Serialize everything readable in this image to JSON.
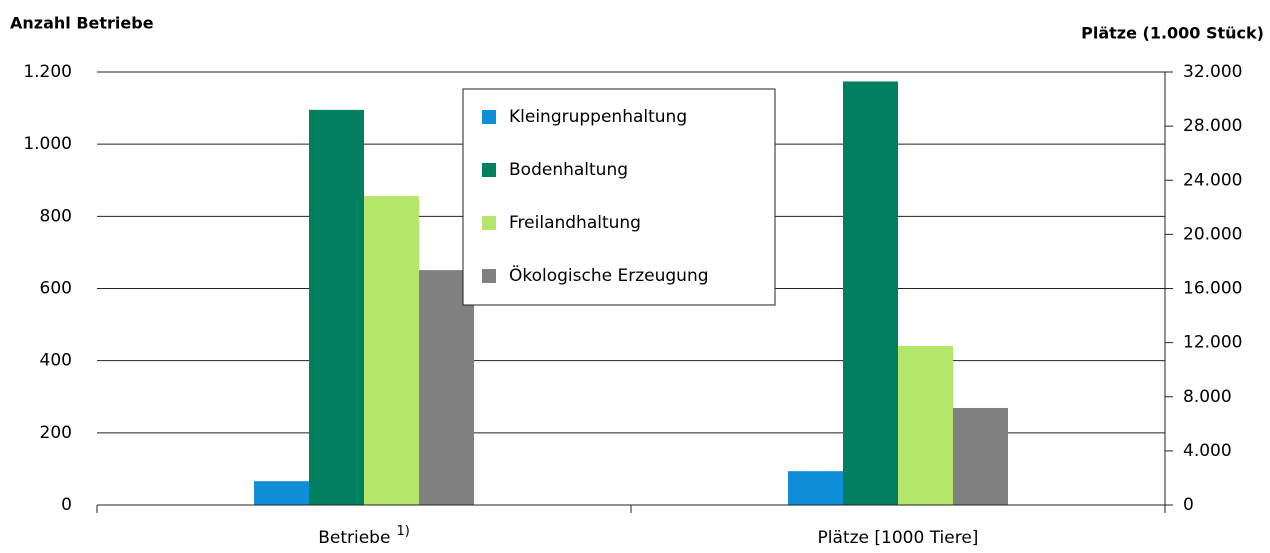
{
  "chart_data": {
    "type": "bar",
    "y_axis_title": "Anzahl Betriebe",
    "y2_axis_title": "Plätze (1.000 Stück)",
    "categories": [
      "Betriebe",
      "Plätze [1000 Tiere]"
    ],
    "category_footnotes": [
      "1)",
      null
    ],
    "category_axes": [
      "y",
      "y2"
    ],
    "series": [
      {
        "name": "Kleingruppenhaltung",
        "color": "#0f8fd8",
        "values": [
          66,
          2500
        ]
      },
      {
        "name": "Bodenhaltung",
        "color": "#007f5f",
        "values": [
          1095,
          31300
        ]
      },
      {
        "name": "Freilandhaltung",
        "color": "#b3e66a",
        "values": [
          856,
          11750
        ]
      },
      {
        "name": "Ökologische Erzeugung",
        "color": "#808080",
        "values": [
          651,
          7170
        ]
      }
    ],
    "ylim": [
      0,
      1200
    ],
    "yticks": [
      0,
      200,
      400,
      600,
      800,
      {
        "value": 1000,
        "label": "1.000"
      },
      {
        "value": 1200,
        "label": "1.200"
      }
    ],
    "y2lim": [
      0,
      32000
    ],
    "y2ticks": [
      0,
      {
        "value": 4000,
        "label": "4.000"
      },
      {
        "value": 8000,
        "label": "8.000"
      },
      {
        "value": 12000,
        "label": "12.000"
      },
      {
        "value": 16000,
        "label": "16.000"
      },
      {
        "value": 20000,
        "label": "20.000"
      },
      {
        "value": 24000,
        "label": "24.000"
      },
      {
        "value": 28000,
        "label": "28.000"
      },
      {
        "value": 32000,
        "label": "32.000"
      }
    ],
    "grid": true,
    "legend_position": "top"
  }
}
